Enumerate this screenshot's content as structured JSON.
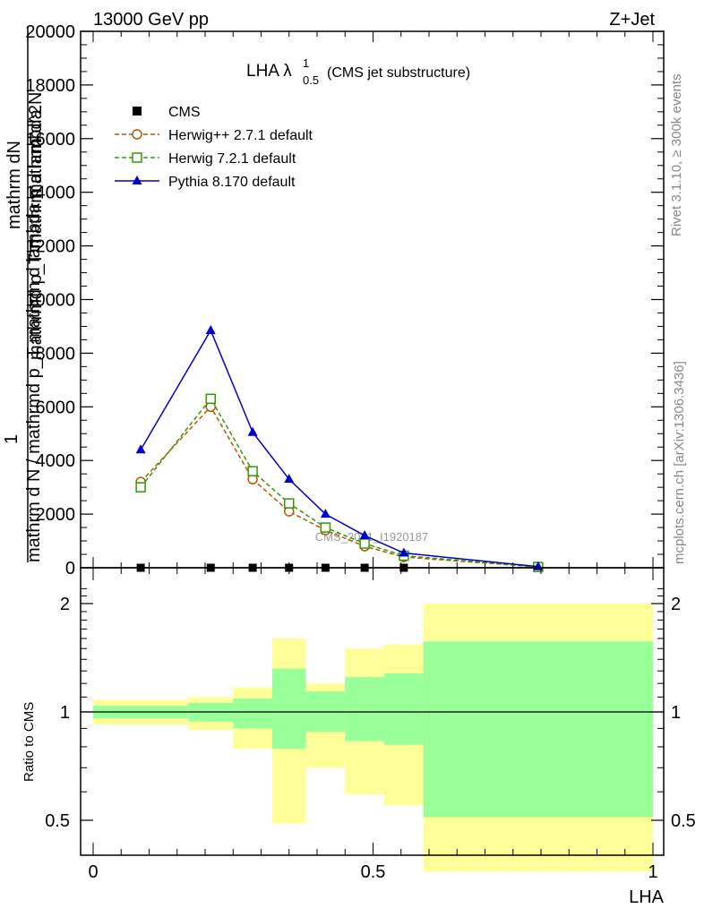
{
  "header": {
    "left": "13000 GeV pp",
    "right": "Z+Jet"
  },
  "side_labels": {
    "rivet": "Rivet 3.1.10, ≥ 300k events",
    "mcplots": "mcplots.cern.ch [arXiv:1306.3436]"
  },
  "colors": {
    "cms": "#000000",
    "herwigpp": "#b35900",
    "herwig7": "#339900",
    "pythia": "#0000cc",
    "band_outer": "#ffff99",
    "band_inner": "#99ff99"
  },
  "chart_data": [
    {
      "type": "line",
      "title_main": "LHA λ",
      "title_sup": "1",
      "title_sub": "0.5",
      "title_suffix": "(CMS jet substructure)",
      "ylabel_num": "1",
      "ylabel_den_1": "mathrm dN",
      "ylabel_den_2": "mathrm d N / mathrmd p_T mathrm d lambda",
      "ylabel_num_overlay": "mathrm d^2N",
      "ylabel_num_overlay2": "mathrmd p_T mathrm d lambda",
      "watermark": "CMS_2021_I1920187",
      "ylim": [
        0,
        20000
      ],
      "yticks": [
        0,
        2000,
        4000,
        6000,
        8000,
        10000,
        12000,
        14000,
        16000,
        18000,
        20000
      ],
      "ytick_labels": [
        "0",
        "2000",
        "4000",
        "6000",
        "8000",
        "10000",
        "12000",
        "14000",
        "16000",
        "18000",
        "20000"
      ],
      "xlim": [
        0,
        1
      ],
      "bins": [
        [
          0,
          0.17
        ],
        [
          0.17,
          0.25
        ],
        [
          0.25,
          0.32
        ],
        [
          0.32,
          0.38
        ],
        [
          0.38,
          0.45
        ],
        [
          0.45,
          0.52
        ],
        [
          0.52,
          0.59
        ],
        [
          0.59,
          1.0
        ]
      ],
      "legend": [
        {
          "name": "CMS",
          "key": "cms",
          "marker": "square-filled",
          "dash": false
        },
        {
          "name": "Herwig++ 2.7.1 default",
          "key": "herwigpp",
          "marker": "circle-open",
          "dash": true
        },
        {
          "name": "Herwig 7.2.1 default",
          "key": "herwig7",
          "marker": "square-open",
          "dash": true
        },
        {
          "name": "Pythia 8.170 default",
          "key": "pythia",
          "marker": "triangle-filled",
          "dash": false
        }
      ],
      "series": [
        {
          "name": "CMS",
          "key": "cms",
          "x": [
            0.085,
            0.21,
            0.285,
            0.35,
            0.415,
            0.485,
            0.555,
            0.795
          ],
          "y": [
            0,
            0,
            0,
            0,
            0,
            0,
            0,
            0
          ]
        },
        {
          "name": "Herwig++ 2.7.1 default",
          "key": "herwigpp",
          "x": [
            0.085,
            0.21,
            0.285,
            0.35,
            0.415,
            0.485,
            0.555,
            0.795
          ],
          "y": [
            3200,
            6000,
            3300,
            2100,
            1400,
            800,
            400,
            30
          ]
        },
        {
          "name": "Herwig 7.2.1 default",
          "key": "herwig7",
          "x": [
            0.085,
            0.21,
            0.285,
            0.35,
            0.415,
            0.485,
            0.555,
            0.795
          ],
          "y": [
            3000,
            6300,
            3600,
            2400,
            1500,
            900,
            450,
            30
          ]
        },
        {
          "name": "Pythia 8.170 default",
          "key": "pythia",
          "x": [
            0.085,
            0.21,
            0.285,
            0.35,
            0.415,
            0.485,
            0.555,
            0.795
          ],
          "y": [
            4400,
            8850,
            5050,
            3300,
            2000,
            1200,
            550,
            40
          ]
        }
      ]
    },
    {
      "type": "area",
      "ylabel": "Ratio to CMS",
      "xlabel": "LHA",
      "ylim": [
        0.35,
        2.25
      ],
      "yticks": [
        0.5,
        1,
        2
      ],
      "ytick_labels": [
        "0.5",
        "1",
        "2"
      ],
      "xlim": [
        0,
        1
      ],
      "xticks": [
        0,
        0.5,
        1
      ],
      "xtick_labels": [
        "0",
        "0.5",
        "1"
      ],
      "bands": [
        {
          "x0": 0,
          "x1": 0.17,
          "outer": [
            0.92,
            1.08
          ],
          "inner": [
            0.96,
            1.04
          ]
        },
        {
          "x0": 0.17,
          "x1": 0.25,
          "outer": [
            0.89,
            1.1
          ],
          "inner": [
            0.94,
            1.06
          ]
        },
        {
          "x0": 0.25,
          "x1": 0.32,
          "outer": [
            0.79,
            1.17
          ],
          "inner": [
            0.9,
            1.09
          ]
        },
        {
          "x0": 0.32,
          "x1": 0.38,
          "outer": [
            0.49,
            1.6
          ],
          "inner": [
            0.79,
            1.32
          ]
        },
        {
          "x0": 0.38,
          "x1": 0.45,
          "outer": [
            0.7,
            1.2
          ],
          "inner": [
            0.88,
            1.14
          ]
        },
        {
          "x0": 0.45,
          "x1": 0.52,
          "outer": [
            0.59,
            1.5
          ],
          "inner": [
            0.83,
            1.25
          ]
        },
        {
          "x0": 0.52,
          "x1": 0.59,
          "outer": [
            0.55,
            1.54
          ],
          "inner": [
            0.81,
            1.28
          ]
        },
        {
          "x0": 0.59,
          "x1": 1.0,
          "outer": [
            0.36,
            2.0
          ],
          "inner": [
            0.51,
            1.57
          ]
        }
      ]
    }
  ]
}
